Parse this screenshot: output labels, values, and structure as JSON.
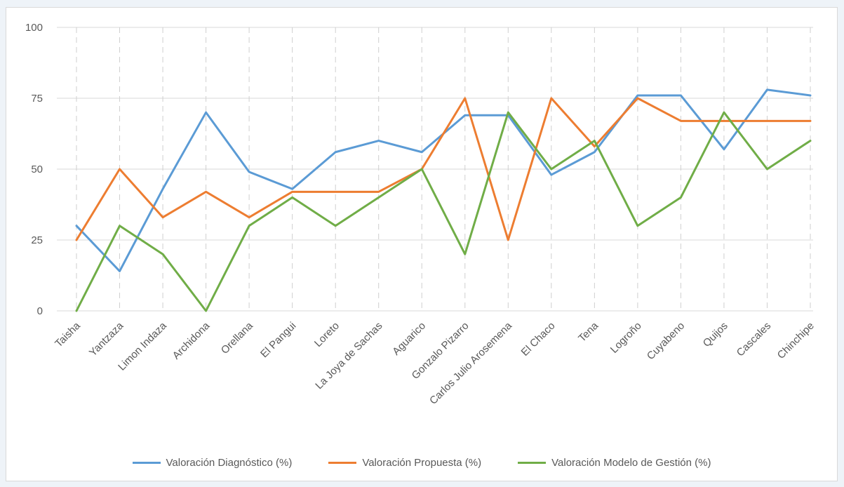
{
  "chart_data": {
    "type": "line",
    "title": "",
    "xlabel": "",
    "ylabel": "",
    "ylim": [
      0,
      100
    ],
    "yticks": [
      0,
      25,
      50,
      75,
      100
    ],
    "grid": true,
    "legend_position": "bottom",
    "categories": [
      "Taisha",
      "Yantzaza",
      "Limon Indaza",
      "Archidona",
      "Orellana",
      "El Pangui",
      "Loreto",
      "La Joya de Sachas",
      "Aguarico",
      "Gonzalo Pizarro",
      "Carlos Julio Arosemena",
      "El Chaco",
      "Tena",
      "Logroño",
      "Cuyabeno",
      "Quijos",
      "Cascales",
      "Chinchipe"
    ],
    "series": [
      {
        "name": "Valoración Diagnóstico (%)",
        "color": "#5b9bd5",
        "values": [
          30,
          14,
          43,
          70,
          49,
          43,
          56,
          60,
          56,
          69,
          69,
          48,
          56,
          76,
          76,
          57,
          78,
          76
        ]
      },
      {
        "name": "Valoración Propuesta (%)",
        "color": "#ed7d31",
        "values": [
          25,
          50,
          33,
          42,
          33,
          42,
          42,
          42,
          50,
          75,
          25,
          75,
          58,
          75,
          67,
          67,
          67,
          67
        ]
      },
      {
        "name": "Valoración Modelo de Gestión (%)",
        "color": "#70ad47",
        "values": [
          0,
          30,
          20,
          0,
          30,
          40,
          30,
          40,
          50,
          20,
          70,
          50,
          60,
          30,
          40,
          70,
          50,
          60
        ]
      }
    ]
  }
}
